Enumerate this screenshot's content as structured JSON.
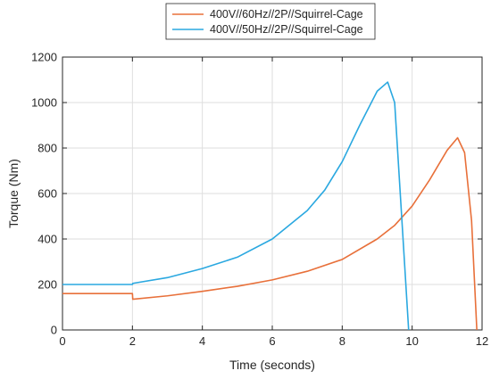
{
  "chart_data": {
    "type": "line",
    "title": "",
    "xlabel": "Time (seconds)",
    "ylabel": "Torque (Nm)",
    "xlim": [
      0,
      12
    ],
    "ylim": [
      0,
      1200
    ],
    "xticks": [
      0,
      2,
      4,
      6,
      8,
      10,
      12
    ],
    "yticks": [
      0,
      200,
      400,
      600,
      800,
      1000,
      1200
    ],
    "xtick_labels": [
      "0",
      "2",
      "4",
      "6",
      "8",
      "10",
      "12"
    ],
    "ytick_labels": [
      "0",
      "200",
      "400",
      "600",
      "800",
      "1000",
      "1200"
    ],
    "grid": true,
    "legend_position": "top-center",
    "series": [
      {
        "name": "400V//60Hz//2P//Squirrel-Cage",
        "color": "#e8703a",
        "x": [
          0,
          1.99,
          2.0,
          2.01,
          3,
          4,
          5,
          6,
          7,
          8,
          9,
          9.5,
          10,
          10.5,
          11,
          11.3,
          11.5,
          11.7,
          11.85
        ],
        "y": [
          160,
          160,
          160,
          135,
          150,
          170,
          192,
          220,
          258,
          310,
          400,
          460,
          545,
          660,
          790,
          845,
          780,
          480,
          0
        ]
      },
      {
        "name": "400V//50Hz//2P//Squirrel-Cage",
        "color": "#2aa8e0",
        "x": [
          0,
          1.99,
          2.0,
          2.01,
          3,
          4,
          5,
          6,
          7,
          7.5,
          8,
          8.5,
          9,
          9.3,
          9.5,
          9.7,
          9.9
        ],
        "y": [
          200,
          200,
          200,
          205,
          230,
          270,
          320,
          400,
          525,
          615,
          740,
          900,
          1050,
          1090,
          1000,
          500,
          0
        ]
      }
    ]
  }
}
